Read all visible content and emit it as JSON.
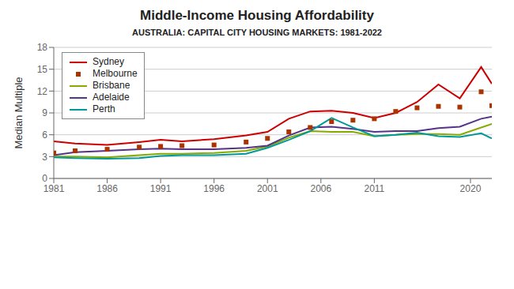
{
  "chart_data": {
    "type": "line",
    "title": "Middle-Income Housing Affordability",
    "subtitle": "AUSTRALIA: CAPITAL CITY HOUSING MARKETS: 1981-2022",
    "y_label": "Median Multiple",
    "x": [
      1981,
      1983,
      1986,
      1989,
      1991,
      1993,
      1996,
      1999,
      2001,
      2003,
      2005,
      2007,
      2009,
      2011,
      2013,
      2015,
      2017,
      2019,
      2021,
      2022
    ],
    "xlim": [
      1981,
      2022
    ],
    "xticks": [
      1981,
      1986,
      1991,
      1996,
      2001,
      2006,
      2011,
      2020
    ],
    "ylim": [
      0,
      18
    ],
    "yticks": [
      0,
      3,
      6,
      9,
      12,
      15,
      18
    ],
    "grid": "y",
    "legend": "upper left",
    "series": [
      {
        "name": "Sydney",
        "color": "#cc0000",
        "line_style": "solid",
        "values": [
          5.1,
          4.8,
          4.6,
          5.0,
          5.3,
          5.1,
          5.4,
          5.9,
          6.4,
          8.2,
          9.2,
          9.3,
          9.0,
          8.3,
          9.0,
          10.5,
          12.9,
          11.0,
          15.3,
          13.0
        ]
      },
      {
        "name": "Melbourne",
        "color": "#aa3300",
        "line_style": "none",
        "marker": "square",
        "values": [
          3.5,
          3.8,
          4.0,
          4.3,
          4.4,
          4.5,
          4.6,
          5.0,
          5.5,
          6.4,
          7.0,
          7.8,
          8.0,
          8.2,
          9.2,
          9.7,
          9.9,
          9.8,
          11.9,
          10.0
        ]
      },
      {
        "name": "Brisbane",
        "color": "#88aa00",
        "line_style": "solid",
        "values": [
          3.0,
          3.0,
          2.9,
          3.2,
          3.4,
          3.4,
          3.5,
          3.8,
          4.4,
          5.6,
          6.5,
          6.4,
          6.4,
          5.8,
          6.0,
          6.1,
          6.1,
          6.0,
          7.0,
          7.5
        ]
      },
      {
        "name": "Adelaide",
        "color": "#553388",
        "line_style": "solid",
        "values": [
          3.2,
          3.6,
          3.8,
          4.0,
          4.1,
          4.0,
          4.0,
          4.2,
          4.5,
          5.9,
          7.0,
          7.1,
          6.8,
          6.4,
          6.5,
          6.5,
          6.9,
          7.1,
          8.2,
          8.5
        ]
      },
      {
        "name": "Perth",
        "color": "#009999",
        "line_style": "solid",
        "values": [
          2.9,
          2.8,
          2.7,
          2.8,
          3.1,
          3.2,
          3.2,
          3.4,
          4.2,
          5.3,
          6.5,
          8.3,
          7.0,
          5.8,
          6.0,
          6.3,
          5.8,
          5.7,
          6.2,
          5.5
        ]
      }
    ]
  }
}
